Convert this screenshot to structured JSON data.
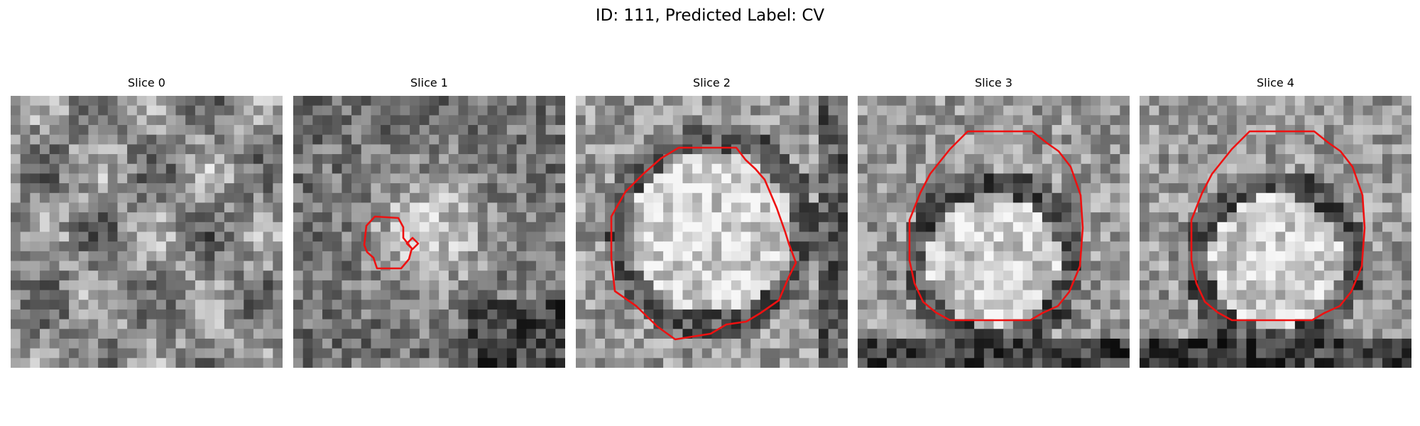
{
  "figure": {
    "title": "ID: 111, Predicted Label: CV"
  },
  "panels": [
    {
      "title": "Slice 0",
      "seed": 11,
      "pattern": "diffuse",
      "contours": []
    },
    {
      "title": "Slice 1",
      "seed": 27,
      "pattern": "blob",
      "contours": [
        "small-blob",
        "tiny-diamond"
      ]
    },
    {
      "title": "Slice 2",
      "seed": 43,
      "pattern": "bright-disc",
      "contours": [
        "large-disc"
      ]
    },
    {
      "title": "Slice 3",
      "seed": 59,
      "pattern": "ring-disc",
      "contours": [
        "octagon"
      ]
    },
    {
      "title": "Slice 4",
      "seed": 71,
      "pattern": "ring-disc",
      "contours": [
        "octagon"
      ]
    }
  ],
  "colors": {
    "contour": "#ee1111"
  }
}
